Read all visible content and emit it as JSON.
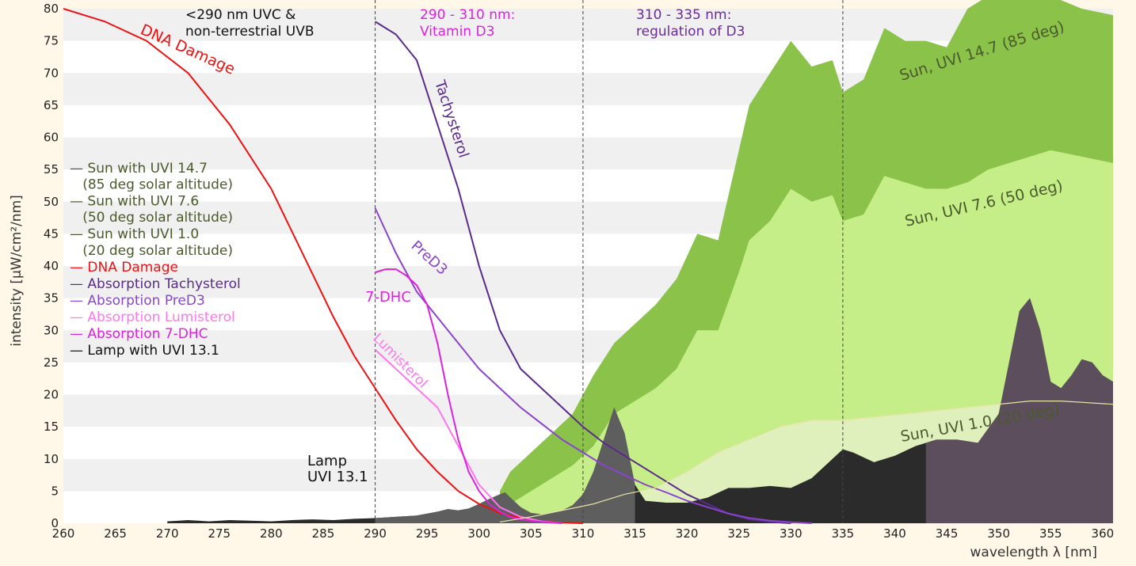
{
  "chart_data": {
    "type": "area",
    "xlabel": "wavelength λ [nm]",
    "ylabel": "intensity [µW/cm²/nm]",
    "xlim": [
      260,
      361
    ],
    "ylim": [
      0,
      80
    ],
    "x_ticks": [
      260,
      265,
      270,
      275,
      280,
      285,
      290,
      295,
      300,
      305,
      310,
      315,
      320,
      325,
      330,
      335,
      340,
      345,
      350,
      355,
      360
    ],
    "y_ticks": [
      0,
      5,
      10,
      15,
      20,
      25,
      30,
      35,
      40,
      45,
      50,
      55,
      60,
      65,
      70,
      75,
      80
    ],
    "grid": "horizontal bands",
    "region_lines": [
      290,
      310,
      335
    ],
    "region_labels": [
      {
        "lines": [
          "<290 nm UVC &",
          "non-terrestrial UVB"
        ],
        "color": "#111111"
      },
      {
        "lines": [
          "290 - 310 nm:",
          "Vitamin D3"
        ],
        "color": "#dd22dd"
      },
      {
        "lines": [
          "310 - 335 nm:",
          "regulation of D3"
        ],
        "color": "#6a2a9a"
      }
    ],
    "legend": {
      "placement": "center-left",
      "entries": [
        {
          "lines": [
            "— Sun with UVI 14.7",
            "   (85 deg solar altitude)"
          ],
          "color": "#4a5a2a"
        },
        {
          "lines": [
            "— Sun with UVI 7.6",
            "   (50 deg solar altitude)"
          ],
          "color": "#4a5a2a"
        },
        {
          "lines": [
            "— Sun with UVI 1.0",
            "   (20 deg solar altitude)"
          ],
          "color": "#4a5a2a"
        },
        {
          "lines": [
            "— DNA Damage"
          ],
          "color": "#ee1111"
        },
        {
          "lines": [
            "— Absorption Tachysterol"
          ],
          "color": "#5a2a8a"
        },
        {
          "lines": [
            "— Absorption PreD3"
          ],
          "color": "#8a44cc"
        },
        {
          "lines": [
            "— Absorption Lumisterol"
          ],
          "color": "#ff77ee"
        },
        {
          "lines": [
            "— Absorption 7-DHC"
          ],
          "color": "#dd22dd"
        },
        {
          "lines": [
            "— Lamp with UVI 13.1"
          ],
          "color": "#111111"
        }
      ]
    },
    "series": [
      {
        "name": "Sun with UVI 14.7",
        "kind": "area",
        "color": "#8bc34a",
        "x": [
          302,
          303,
          305,
          307,
          309,
          311,
          313,
          315,
          317,
          319,
          321,
          323,
          325,
          326,
          328,
          330,
          332,
          334,
          335,
          337,
          339,
          341,
          343,
          345,
          347,
          349,
          351,
          353,
          355,
          358,
          361
        ],
        "y": [
          5,
          8,
          11,
          14,
          17,
          23,
          28,
          31,
          34,
          38,
          45,
          44,
          58,
          65,
          70,
          75,
          71,
          72,
          67,
          69,
          77,
          75,
          75,
          74,
          80,
          82,
          82,
          82,
          82,
          80,
          79
        ]
      },
      {
        "name": "Sun with UVI 7.6",
        "kind": "area",
        "color": "#c5ee88",
        "x": [
          302,
          303,
          305,
          307,
          309,
          311,
          313,
          315,
          317,
          319,
          321,
          323,
          325,
          326,
          328,
          330,
          332,
          334,
          335,
          337,
          339,
          341,
          343,
          345,
          347,
          349,
          351,
          353,
          355,
          358,
          361
        ],
        "y": [
          1,
          3,
          5,
          7,
          9,
          12,
          17,
          19,
          21,
          24,
          30,
          30,
          39,
          44,
          47,
          52,
          50,
          51,
          47,
          48,
          54,
          53,
          52,
          52,
          53,
          55,
          56,
          57,
          58,
          57,
          56
        ]
      },
      {
        "name": "Sun with UVI 1.0",
        "kind": "area",
        "color": "#dff0bc",
        "x": [
          302,
          305,
          308,
          311,
          314,
          317,
          320,
          323,
          326,
          329,
          332,
          335,
          338,
          341,
          344,
          347,
          350,
          353,
          356,
          361
        ],
        "y": [
          0.2,
          1,
          2,
          3,
          4.5,
          5.5,
          8,
          11,
          13,
          15,
          16,
          16,
          16.5,
          17,
          17.5,
          18,
          18.5,
          19,
          19,
          18.5
        ]
      },
      {
        "name": "Lamp with UVI 13.1",
        "kind": "area",
        "color": "#2b2b2b",
        "x": [
          270,
          272,
          274,
          276,
          278,
          280,
          282,
          284,
          286,
          288,
          290,
          292,
          294,
          296,
          297,
          298,
          299,
          300,
          301,
          302,
          302.5,
          303,
          304,
          305,
          306,
          307,
          308,
          309,
          310,
          311,
          312,
          313,
          314,
          315,
          316,
          318,
          320,
          322,
          324,
          326,
          328,
          330,
          332,
          334,
          335,
          336,
          338,
          340,
          342,
          344,
          346,
          348,
          350,
          351,
          352,
          353,
          354,
          355,
          356,
          357,
          358,
          359,
          360,
          361
        ],
        "y": [
          0.3,
          0.5,
          0.3,
          0.5,
          0.4,
          0.3,
          0.5,
          0.6,
          0.5,
          0.7,
          0.8,
          1,
          1.2,
          1.8,
          2.2,
          2,
          2.3,
          3,
          3.8,
          4.5,
          4.8,
          4,
          2.5,
          1.6,
          1.4,
          1.6,
          2,
          2.8,
          4.5,
          8,
          13,
          18,
          14,
          6,
          3.5,
          3.2,
          3.2,
          4,
          5.5,
          5.5,
          5.8,
          5.5,
          7,
          10,
          11.5,
          11,
          9.5,
          10.5,
          12,
          13,
          13,
          12.5,
          17,
          25,
          33,
          35,
          30,
          22,
          21,
          23,
          25.5,
          25,
          23,
          22
        ]
      },
      {
        "name": "DNA Damage",
        "kind": "line",
        "color": "#ee1111",
        "x": [
          260,
          264,
          268,
          272,
          276,
          280,
          283,
          286,
          288,
          290,
          292,
          294,
          296,
          298,
          300,
          302,
          304,
          306,
          308,
          310
        ],
        "y": [
          80,
          78,
          75,
          70,
          62,
          52,
          42,
          32,
          26,
          21,
          16,
          11.5,
          8,
          5,
          3,
          1.6,
          0.8,
          0.3,
          0.1,
          0
        ]
      },
      {
        "name": "Absorption Tachysterol",
        "kind": "line",
        "color": "#5a2a8a",
        "x": [
          290,
          292,
          294,
          296,
          298,
          300,
          302,
          304,
          306,
          308,
          310,
          312,
          314,
          316,
          318,
          320,
          322,
          324,
          326,
          328,
          330
        ],
        "y": [
          78,
          76,
          72,
          62,
          52,
          40,
          30,
          24,
          21,
          18,
          15,
          12.5,
          10.5,
          8.5,
          6.5,
          4.5,
          3,
          1.5,
          0.6,
          0.2,
          0
        ]
      },
      {
        "name": "Absorption PreD3",
        "kind": "line",
        "color": "#8a44cc",
        "x": [
          290,
          292,
          294,
          296,
          298,
          300,
          302,
          304,
          306,
          308,
          310,
          312,
          314,
          316,
          318,
          320,
          322,
          324,
          326,
          328,
          330,
          332
        ],
        "y": [
          49,
          42,
          36,
          32,
          28,
          24,
          21,
          18,
          15.5,
          13,
          11,
          9,
          7.5,
          6,
          4.8,
          3.5,
          2.5,
          1.5,
          0.8,
          0.4,
          0.15,
          0
        ]
      },
      {
        "name": "Absorption Lumisterol",
        "kind": "line",
        "color": "#ff77ee",
        "x": [
          290,
          292,
          294,
          296,
          298,
          300,
          302,
          304,
          306,
          308
        ],
        "y": [
          27,
          24,
          21,
          18,
          12,
          6,
          2.5,
          1,
          0.3,
          0
        ]
      },
      {
        "name": "Absorption 7-DHC",
        "kind": "line",
        "color": "#dd22dd",
        "x": [
          290,
          291,
          292,
          293,
          294,
          295,
          296,
          297,
          298,
          299,
          300,
          301,
          302,
          303,
          304,
          306,
          308
        ],
        "y": [
          39,
          39.5,
          39.5,
          38.5,
          37,
          34,
          28,
          20,
          13,
          8,
          5,
          3,
          1.8,
          1,
          0.6,
          0.2,
          0
        ]
      }
    ],
    "annotations": [
      {
        "text": "DNA Damage",
        "color": "#ee1111"
      },
      {
        "text": "Tachysterol",
        "color": "#5a2a8a"
      },
      {
        "text": "PreD3",
        "color": "#8a44cc"
      },
      {
        "text": "7-DHC",
        "color": "#dd22dd"
      },
      {
        "text": "Lumisterol",
        "color": "#ff77ee"
      },
      {
        "text": "Sun, UVI 14.7 (85 deg)",
        "color": "#4a5a2a"
      },
      {
        "text": "Sun, UVI 7.6 (50 deg)",
        "color": "#4a5a2a"
      },
      {
        "text": "Sun, UVI 1.0 (20 deg)",
        "color": "#4a5a2a"
      },
      {
        "text": "Lamp",
        "color": "#111111"
      },
      {
        "text": "UVI 13.1",
        "color": "#111111"
      }
    ]
  }
}
